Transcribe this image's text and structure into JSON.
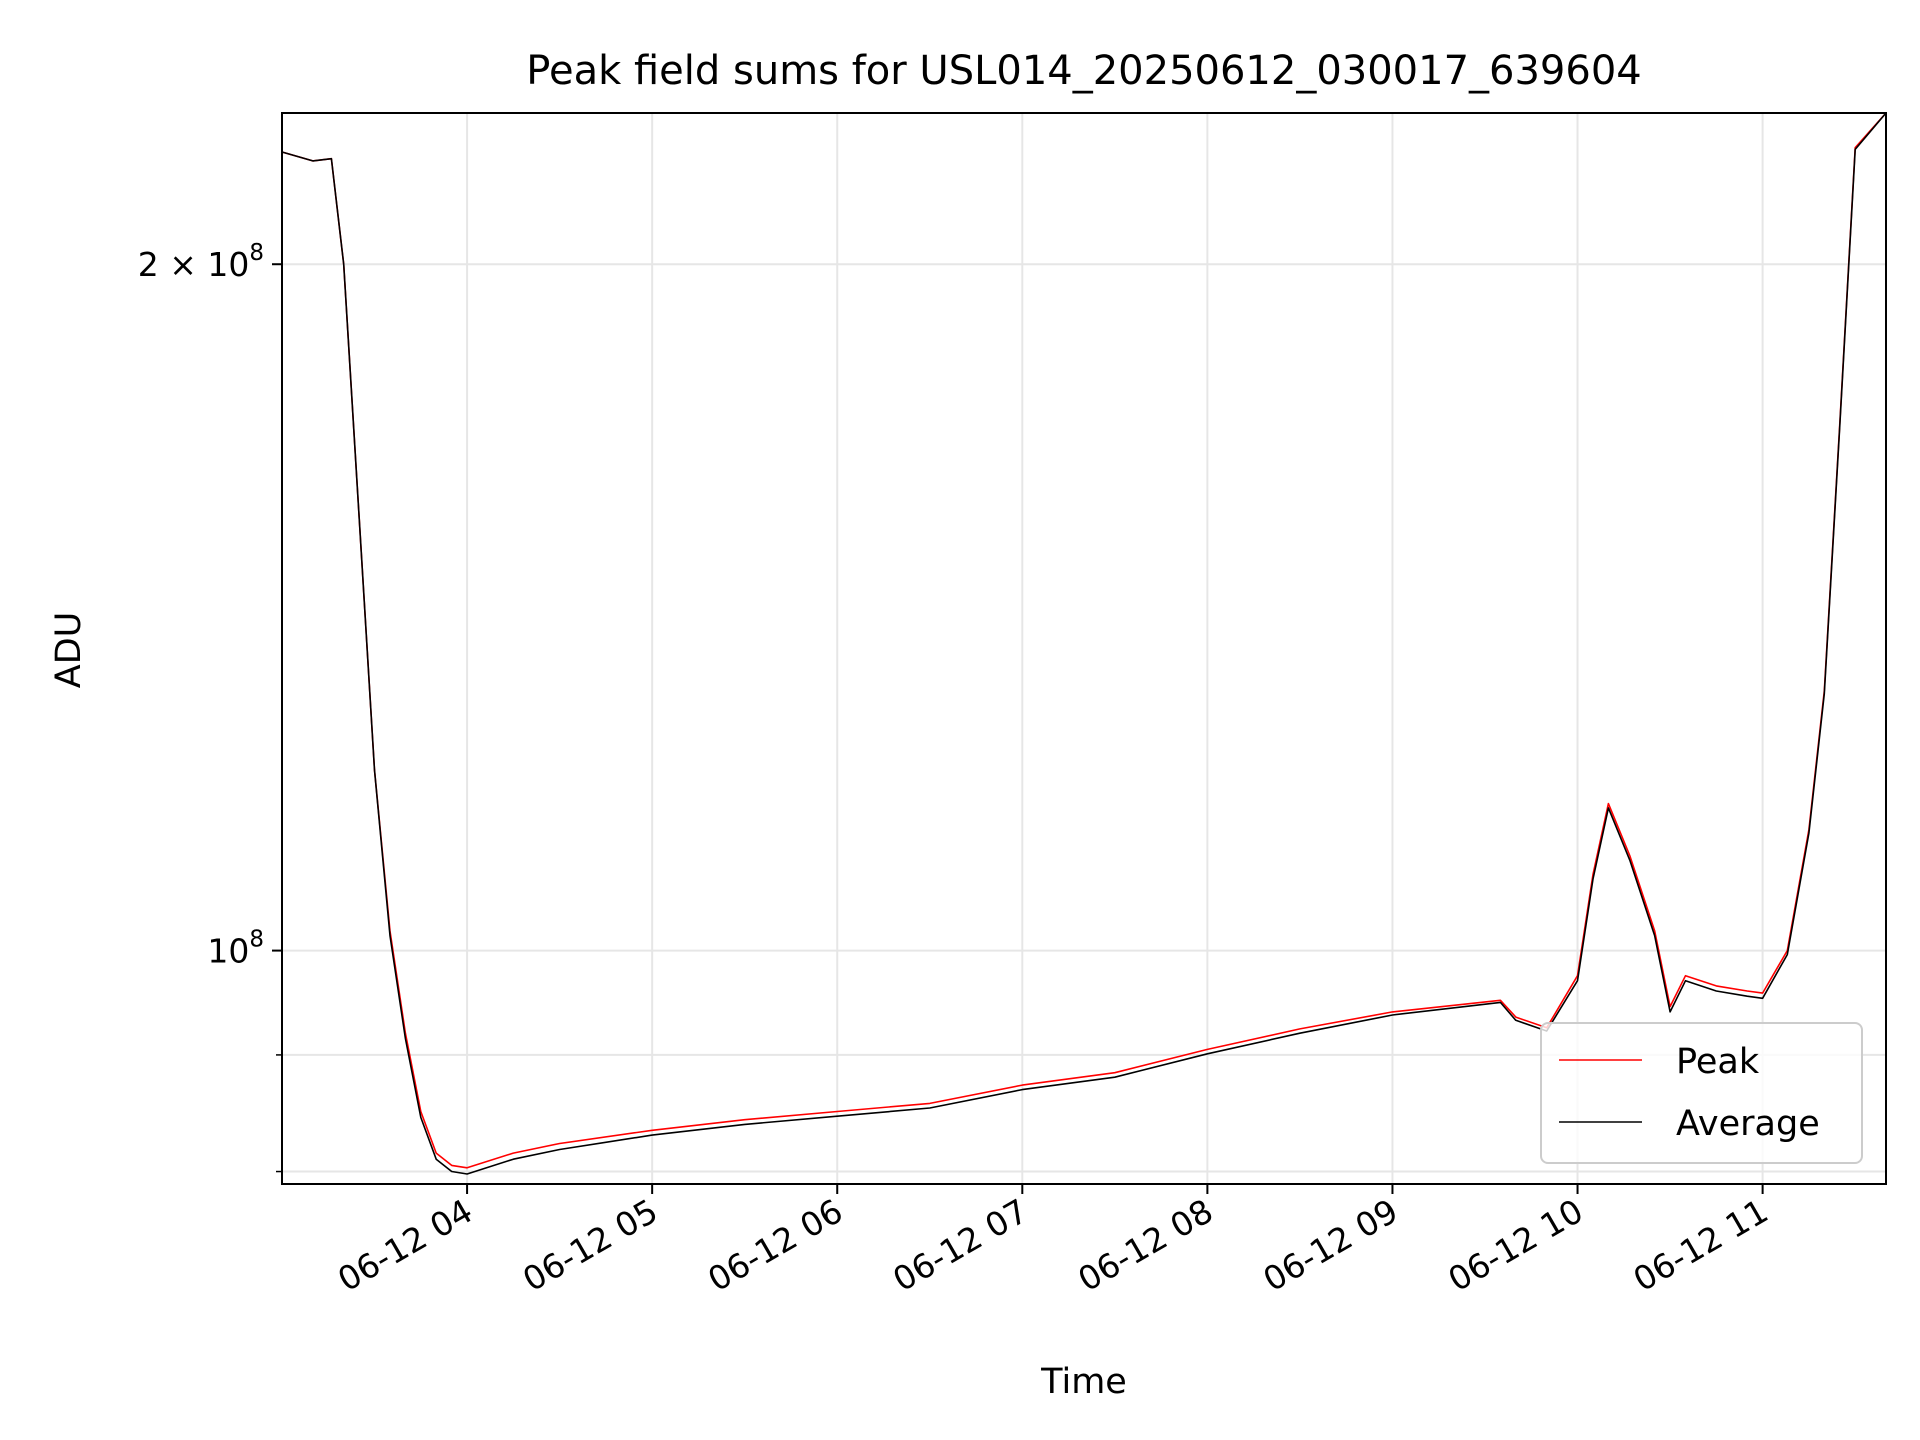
{
  "chart_data": {
    "type": "line",
    "title": "Peak field sums for USL014_20250612_030017_639604",
    "xlabel": "Time",
    "ylabel": "ADU",
    "yscale": "log",
    "xlim": [
      "2025-06-12T03:00",
      "2025-06-12T11:40"
    ],
    "ylim": [
      79000000,
      233000000
    ],
    "grid": true,
    "legend_position": "lower right",
    "x_ticks": [
      {
        "t": "2025-06-12T04:00",
        "label": "06-12 04"
      },
      {
        "t": "2025-06-12T05:00",
        "label": "06-12 05"
      },
      {
        "t": "2025-06-12T06:00",
        "label": "06-12 06"
      },
      {
        "t": "2025-06-12T07:00",
        "label": "06-12 07"
      },
      {
        "t": "2025-06-12T08:00",
        "label": "06-12 08"
      },
      {
        "t": "2025-06-12T09:00",
        "label": "06-12 09"
      },
      {
        "t": "2025-06-12T10:00",
        "label": "06-12 10"
      },
      {
        "t": "2025-06-12T11:00",
        "label": "06-12 11"
      }
    ],
    "y_major_ticks": [
      {
        "value": 100000000,
        "base": "10",
        "exp": "8",
        "mantissa": ""
      },
      {
        "value": 200000000,
        "base": "10",
        "exp": "8",
        "mantissa": "2"
      }
    ],
    "y_minor_grid": [
      80000000,
      90000000
    ],
    "series": [
      {
        "name": "Peak",
        "color": "#ff0000",
        "points": [
          [
            "2025-06-12T03:00",
            224000000
          ],
          [
            "2025-06-12T03:10",
            222000000
          ],
          [
            "2025-06-12T03:16",
            222500000
          ],
          [
            "2025-06-12T03:20",
            200000000
          ],
          [
            "2025-06-12T03:25",
            155000000
          ],
          [
            "2025-06-12T03:30",
            120000000
          ],
          [
            "2025-06-12T03:35",
            102000000
          ],
          [
            "2025-06-12T03:40",
            92000000
          ],
          [
            "2025-06-12T03:45",
            85000000
          ],
          [
            "2025-06-12T03:50",
            81500000
          ],
          [
            "2025-06-12T03:55",
            80500000
          ],
          [
            "2025-06-12T04:00",
            80300000
          ],
          [
            "2025-06-12T04:15",
            81500000
          ],
          [
            "2025-06-12T04:30",
            82300000
          ],
          [
            "2025-06-12T05:00",
            83400000
          ],
          [
            "2025-06-12T05:30",
            84300000
          ],
          [
            "2025-06-12T06:00",
            85000000
          ],
          [
            "2025-06-12T06:30",
            85700000
          ],
          [
            "2025-06-12T07:00",
            87300000
          ],
          [
            "2025-06-12T07:30",
            88400000
          ],
          [
            "2025-06-12T08:00",
            90500000
          ],
          [
            "2025-06-12T08:30",
            92400000
          ],
          [
            "2025-06-12T09:00",
            94000000
          ],
          [
            "2025-06-12T09:35",
            95100000
          ],
          [
            "2025-06-12T09:40",
            93500000
          ],
          [
            "2025-06-12T09:50",
            92500000
          ],
          [
            "2025-06-12T10:00",
            97500000
          ],
          [
            "2025-06-12T10:05",
            108000000
          ],
          [
            "2025-06-12T10:10",
            116000000
          ],
          [
            "2025-06-12T10:17",
            110000000
          ],
          [
            "2025-06-12T10:25",
            102000000
          ],
          [
            "2025-06-12T10:30",
            94500000
          ],
          [
            "2025-06-12T10:35",
            97500000
          ],
          [
            "2025-06-12T10:45",
            96500000
          ],
          [
            "2025-06-12T10:55",
            96000000
          ],
          [
            "2025-06-12T11:00",
            95800000
          ],
          [
            "2025-06-12T11:08",
            100000000
          ],
          [
            "2025-06-12T11:15",
            113000000
          ],
          [
            "2025-06-12T11:20",
            130000000
          ],
          [
            "2025-06-12T11:25",
            170000000
          ],
          [
            "2025-06-12T11:30",
            225000000
          ],
          [
            "2025-06-12T11:40",
            233000000
          ]
        ]
      },
      {
        "name": "Average",
        "color": "#000000",
        "points": [
          [
            "2025-06-12T03:00",
            224000000
          ],
          [
            "2025-06-12T03:10",
            222000000
          ],
          [
            "2025-06-12T03:16",
            222500000
          ],
          [
            "2025-06-12T03:20",
            200000000
          ],
          [
            "2025-06-12T03:25",
            155000000
          ],
          [
            "2025-06-12T03:30",
            120000000
          ],
          [
            "2025-06-12T03:35",
            101500000
          ],
          [
            "2025-06-12T03:40",
            91500000
          ],
          [
            "2025-06-12T03:45",
            84500000
          ],
          [
            "2025-06-12T03:50",
            81000000
          ],
          [
            "2025-06-12T03:55",
            80000000
          ],
          [
            "2025-06-12T04:00",
            79800000
          ],
          [
            "2025-06-12T04:15",
            81000000
          ],
          [
            "2025-06-12T04:30",
            81800000
          ],
          [
            "2025-06-12T05:00",
            83000000
          ],
          [
            "2025-06-12T05:30",
            83900000
          ],
          [
            "2025-06-12T06:00",
            84600000
          ],
          [
            "2025-06-12T06:30",
            85300000
          ],
          [
            "2025-06-12T07:00",
            86900000
          ],
          [
            "2025-06-12T07:30",
            88000000
          ],
          [
            "2025-06-12T08:00",
            90100000
          ],
          [
            "2025-06-12T08:30",
            92000000
          ],
          [
            "2025-06-12T09:00",
            93700000
          ],
          [
            "2025-06-12T09:35",
            94900000
          ],
          [
            "2025-06-12T09:40",
            93200000
          ],
          [
            "2025-06-12T09:50",
            92200000
          ],
          [
            "2025-06-12T10:00",
            97000000
          ],
          [
            "2025-06-12T10:05",
            107500000
          ],
          [
            "2025-06-12T10:10",
            115500000
          ],
          [
            "2025-06-12T10:17",
            109500000
          ],
          [
            "2025-06-12T10:25",
            101500000
          ],
          [
            "2025-06-12T10:30",
            94000000
          ],
          [
            "2025-06-12T10:35",
            97000000
          ],
          [
            "2025-06-12T10:45",
            96000000
          ],
          [
            "2025-06-12T10:55",
            95500000
          ],
          [
            "2025-06-12T11:00",
            95300000
          ],
          [
            "2025-06-12T11:08",
            99600000
          ],
          [
            "2025-06-12T11:15",
            112600000
          ],
          [
            "2025-06-12T11:20",
            129600000
          ],
          [
            "2025-06-12T11:25",
            169600000
          ],
          [
            "2025-06-12T11:30",
            224600000
          ],
          [
            "2025-06-12T11:40",
            233000000
          ]
        ]
      }
    ]
  }
}
